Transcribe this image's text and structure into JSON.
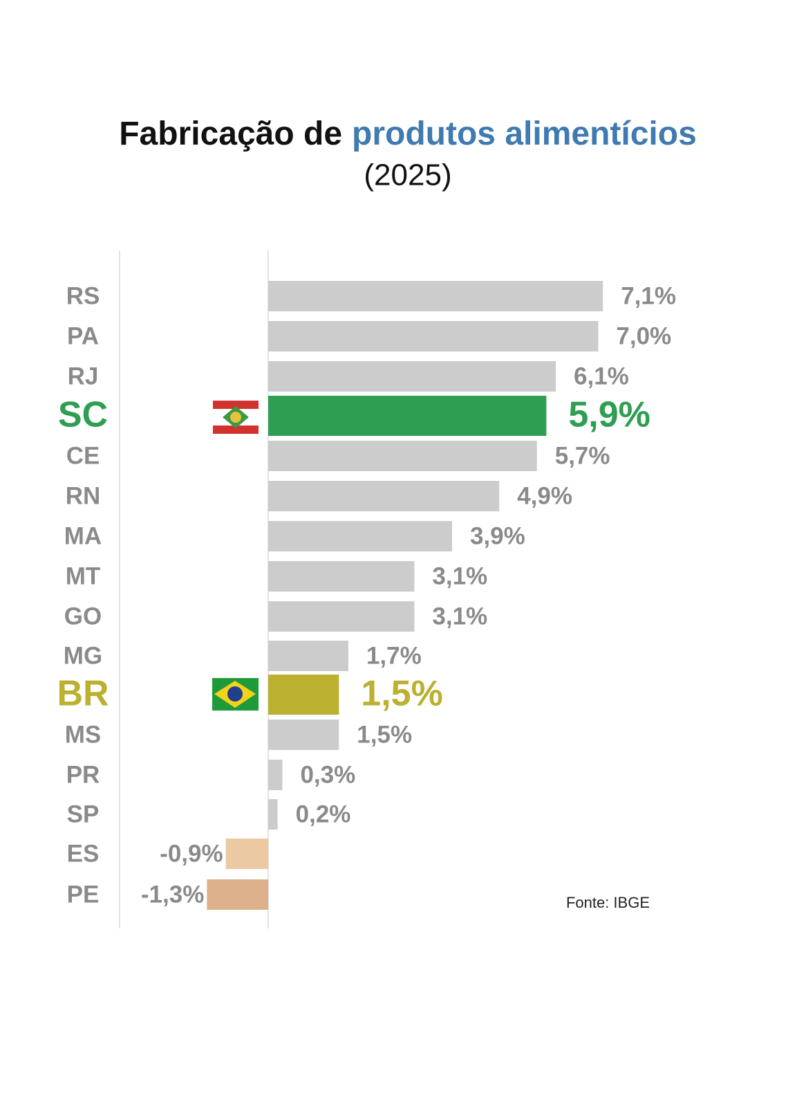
{
  "chart_data": {
    "type": "bar",
    "orientation": "horizontal",
    "title": "Fabricação de",
    "title_highlight": "produtos alimentícios",
    "title_highlight_color": "#3f7ab0",
    "subtitle": "(2025)",
    "source": "Fonte: IBGE",
    "categories": [
      "RS",
      "PA",
      "RJ",
      "SC",
      "CE",
      "RN",
      "MA",
      "MT",
      "GO",
      "MG",
      "BR",
      "MS",
      "PR",
      "SP",
      "ES",
      "PE"
    ],
    "values": [
      7.1,
      7.0,
      6.1,
      5.9,
      5.7,
      4.9,
      3.9,
      3.1,
      3.1,
      1.7,
      1.5,
      1.5,
      0.3,
      0.2,
      -0.9,
      -1.3
    ],
    "value_labels": [
      "7,1%",
      "7,0%",
      "6,1%",
      "5,9%",
      "5,7%",
      "4,9%",
      "3,9%",
      "3,1%",
      "3,1%",
      "1,7%",
      "1,5%",
      "1,5%",
      "0,3%",
      "0,2%",
      "-0,9%",
      "-1,3%"
    ],
    "colors": [
      "#cccccc",
      "#cccccc",
      "#cccccc",
      "#2e9e52",
      "#cccccc",
      "#cccccc",
      "#cccccc",
      "#cccccc",
      "#cccccc",
      "#cccccc",
      "#bcb030",
      "#cccccc",
      "#cccccc",
      "#cccccc",
      "#ebc9a3",
      "#dcb18b"
    ],
    "label_colors": [
      "#8a8a8a",
      "#8a8a8a",
      "#8a8a8a",
      "#2e9e52",
      "#8a8a8a",
      "#8a8a8a",
      "#8a8a8a",
      "#8a8a8a",
      "#8a8a8a",
      "#8a8a8a",
      "#bcb030",
      "#8a8a8a",
      "#8a8a8a",
      "#8a8a8a",
      "#8a8a8a",
      "#8a8a8a"
    ],
    "emphasized": [
      false,
      false,
      false,
      true,
      false,
      false,
      false,
      false,
      false,
      false,
      true,
      false,
      false,
      false,
      false,
      false
    ]
  }
}
